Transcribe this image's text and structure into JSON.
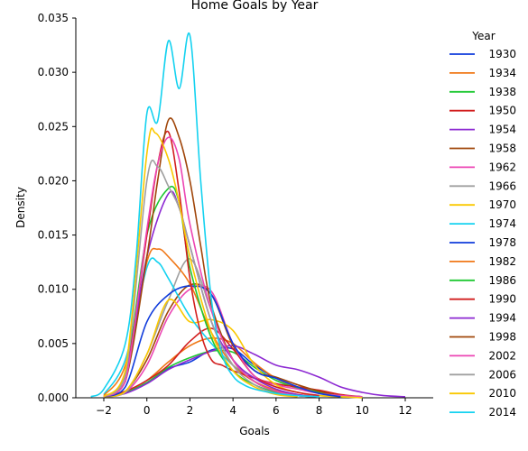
{
  "chart_data": {
    "type": "line",
    "title": "Home Goals by Year",
    "xlabel": "Goals",
    "ylabel": "Density",
    "xlim": [
      -3.3,
      13.3
    ],
    "ylim": [
      0,
      0.035
    ],
    "xticks": [
      "−2",
      "0",
      "2",
      "4",
      "6",
      "8",
      "10",
      "12"
    ],
    "xtick_values": [
      -2,
      0,
      2,
      4,
      6,
      8,
      10,
      12
    ],
    "yticks": [
      "0.000",
      "0.005",
      "0.010",
      "0.015",
      "0.020",
      "0.025",
      "0.030",
      "0.035"
    ],
    "ytick_values": [
      0,
      0.005,
      0.01,
      0.015,
      0.02,
      0.025,
      0.03,
      0.035
    ],
    "grid": false,
    "legend_title": "Year",
    "legend_position": "right",
    "series": [
      {
        "name": "1930",
        "color": "#0f3bdc",
        "x": [
          -2,
          -1,
          0,
          1,
          2,
          3,
          4,
          5,
          6,
          7,
          8,
          9,
          10
        ],
        "y": [
          0.0001,
          0.0005,
          0.0014,
          0.0027,
          0.0033,
          0.0044,
          0.0045,
          0.003,
          0.0018,
          0.001,
          0.0005,
          0.0002,
          0.0001
        ]
      },
      {
        "name": "1934",
        "color": "#f07818",
        "x": [
          -2,
          -1,
          0,
          1,
          2,
          3,
          4,
          5,
          6,
          7,
          8,
          9,
          10
        ],
        "y": [
          0.0001,
          0.0006,
          0.0016,
          0.0033,
          0.0048,
          0.0055,
          0.005,
          0.0032,
          0.0018,
          0.001,
          0.0005,
          0.0002,
          0.0001
        ]
      },
      {
        "name": "1938",
        "color": "#1ec832",
        "x": [
          -2,
          -1,
          0,
          1,
          2,
          3,
          4,
          5,
          6,
          7,
          8,
          9,
          10
        ],
        "y": [
          0.0001,
          0.0005,
          0.0014,
          0.0028,
          0.0037,
          0.0043,
          0.0042,
          0.0028,
          0.0016,
          0.0009,
          0.0005,
          0.0002,
          0.0001
        ]
      },
      {
        "name": "1950",
        "color": "#d21e1e",
        "x": [
          -2,
          -1,
          0,
          1,
          2,
          3,
          4,
          5,
          6,
          7,
          8,
          9,
          10
        ],
        "y": [
          0.0001,
          0.0006,
          0.0016,
          0.003,
          0.0052,
          0.0064,
          0.0045,
          0.002,
          0.0013,
          0.001,
          0.0007,
          0.0003,
          0.0001
        ]
      },
      {
        "name": "1954",
        "color": "#8c28d2",
        "x": [
          -2,
          -1,
          0,
          1,
          2,
          3,
          4,
          5,
          6,
          7,
          8,
          9,
          10,
          11,
          12
        ],
        "y": [
          0.0001,
          0.0004,
          0.0013,
          0.0026,
          0.0035,
          0.0043,
          0.0048,
          0.004,
          0.003,
          0.0026,
          0.0019,
          0.001,
          0.0005,
          0.0002,
          0.0001
        ]
      },
      {
        "name": "1958",
        "color": "#a0460a",
        "x": [
          -2,
          -1,
          0,
          1,
          2,
          3,
          4,
          5,
          6,
          7,
          8,
          9,
          10
        ],
        "y": [
          0.0001,
          0.0006,
          0.0035,
          0.008,
          0.0104,
          0.0095,
          0.0048,
          0.0025,
          0.0019,
          0.0012,
          0.0006,
          0.0002,
          0.0001
        ]
      },
      {
        "name": "1962",
        "color": "#ec46b4",
        "x": [
          -2,
          -1,
          0,
          1,
          2,
          3,
          4,
          5,
          6,
          7,
          8,
          9,
          10
        ],
        "y": [
          0.0001,
          0.0005,
          0.003,
          0.0075,
          0.01,
          0.0098,
          0.005,
          0.002,
          0.0012,
          0.0008,
          0.0004,
          0.0002,
          0.0001
        ]
      },
      {
        "name": "1966",
        "color": "#a0a0a0",
        "x": [
          -2,
          -1,
          0,
          1,
          2,
          3,
          4,
          5,
          6,
          7,
          8,
          9,
          10
        ],
        "y": [
          0.0001,
          0.0005,
          0.004,
          0.009,
          0.0128,
          0.008,
          0.0035,
          0.0018,
          0.001,
          0.0005,
          0.0002,
          0.0001,
          0.0
        ]
      },
      {
        "name": "1970",
        "color": "#fac800",
        "x": [
          -2,
          -1,
          0,
          1,
          2,
          3,
          4,
          5,
          6,
          7,
          8,
          9,
          10
        ],
        "y": [
          0.0001,
          0.0006,
          0.004,
          0.009,
          0.007,
          0.0072,
          0.0062,
          0.003,
          0.0012,
          0.0005,
          0.0002,
          0.0001,
          0.0
        ]
      },
      {
        "name": "1974",
        "color": "#14d2f0",
        "x": [
          -2,
          -1,
          0,
          0.5,
          1,
          2,
          3,
          4,
          5,
          6,
          7,
          8
        ],
        "y": [
          0.0003,
          0.0035,
          0.012,
          0.0125,
          0.011,
          0.0075,
          0.005,
          0.003,
          0.0015,
          0.0006,
          0.0002,
          0.0001
        ]
      },
      {
        "name": "1978",
        "color": "#0f3bdc",
        "x": [
          -2,
          -1,
          0,
          1,
          2,
          3,
          4,
          5,
          6,
          7,
          8,
          9
        ],
        "y": [
          0.0001,
          0.001,
          0.007,
          0.0095,
          0.0103,
          0.0095,
          0.005,
          0.0025,
          0.0018,
          0.001,
          0.0004,
          0.0001
        ]
      },
      {
        "name": "1982",
        "color": "#f07818",
        "x": [
          -2,
          -1,
          0,
          0.5,
          1,
          2,
          3,
          4,
          5,
          6,
          7,
          8
        ],
        "y": [
          0.0002,
          0.003,
          0.0125,
          0.0137,
          0.013,
          0.0105,
          0.006,
          0.003,
          0.0015,
          0.0007,
          0.0003,
          0.0001
        ]
      },
      {
        "name": "1986",
        "color": "#1ec832",
        "x": [
          -2,
          -1,
          0,
          1,
          1.5,
          2,
          3,
          4,
          5,
          6,
          7,
          8
        ],
        "y": [
          0.0001,
          0.002,
          0.015,
          0.0193,
          0.018,
          0.012,
          0.0055,
          0.0025,
          0.0012,
          0.0005,
          0.0002,
          0.0001
        ]
      },
      {
        "name": "1990",
        "color": "#d21e1e",
        "x": [
          -2,
          -1,
          0,
          0.5,
          1,
          1.5,
          2,
          2.5,
          3,
          3.5,
          4,
          5,
          6,
          7,
          8
        ],
        "y": [
          0.0001,
          0.002,
          0.015,
          0.0215,
          0.0245,
          0.019,
          0.011,
          0.006,
          0.0035,
          0.003,
          0.0025,
          0.0018,
          0.001,
          0.0005,
          0.0002
        ]
      },
      {
        "name": "1994",
        "color": "#8c28d2",
        "x": [
          -2,
          -1,
          0,
          1,
          1.5,
          2,
          3,
          4,
          5,
          6,
          7,
          8
        ],
        "y": [
          0.0001,
          0.002,
          0.013,
          0.0188,
          0.0175,
          0.014,
          0.007,
          0.0035,
          0.0018,
          0.0008,
          0.0003,
          0.0001
        ]
      },
      {
        "name": "1998",
        "color": "#a0460a",
        "x": [
          -2,
          -1,
          0,
          0.5,
          1,
          1.5,
          2,
          2.5,
          3,
          4,
          5,
          6,
          7,
          8
        ],
        "y": [
          0.0001,
          0.0015,
          0.013,
          0.02,
          0.0256,
          0.024,
          0.02,
          0.014,
          0.0085,
          0.0035,
          0.0015,
          0.0006,
          0.0002,
          0.0001
        ]
      },
      {
        "name": "2002",
        "color": "#ec46b4",
        "x": [
          -2,
          -1,
          0,
          0.5,
          1,
          1.5,
          2,
          3,
          4,
          5,
          6,
          7,
          8
        ],
        "y": [
          0.0001,
          0.0015,
          0.0155,
          0.0215,
          0.024,
          0.022,
          0.016,
          0.008,
          0.0035,
          0.0015,
          0.0006,
          0.0002,
          0.0001
        ]
      },
      {
        "name": "2006",
        "color": "#a0a0a0",
        "x": [
          -2,
          -1,
          0,
          0.5,
          1,
          1.5,
          2,
          3,
          4,
          5,
          6,
          7
        ],
        "y": [
          0.0001,
          0.002,
          0.02,
          0.0213,
          0.0195,
          0.0175,
          0.014,
          0.007,
          0.003,
          0.0012,
          0.0004,
          0.0001
        ]
      },
      {
        "name": "2010",
        "color": "#fac800",
        "x": [
          -2,
          -1,
          0,
          0.4,
          1,
          1.5,
          2,
          3,
          4,
          5,
          6,
          7
        ],
        "y": [
          0.0001,
          0.0025,
          0.0225,
          0.0244,
          0.022,
          0.018,
          0.013,
          0.006,
          0.0025,
          0.001,
          0.0003,
          0.0001
        ]
      },
      {
        "name": "2014",
        "color": "#14d2f0",
        "x": [
          -2.6,
          -2,
          -1,
          -0.5,
          0,
          0.5,
          1,
          1.5,
          2,
          2.5,
          3,
          3.5,
          4,
          4.5,
          5,
          6,
          7,
          8
        ],
        "y": [
          0.0001,
          0.0008,
          0.005,
          0.013,
          0.0262,
          0.0255,
          0.0329,
          0.0285,
          0.0334,
          0.02,
          0.009,
          0.004,
          0.002,
          0.0012,
          0.0008,
          0.0004,
          0.0002,
          0.0001
        ]
      }
    ]
  }
}
